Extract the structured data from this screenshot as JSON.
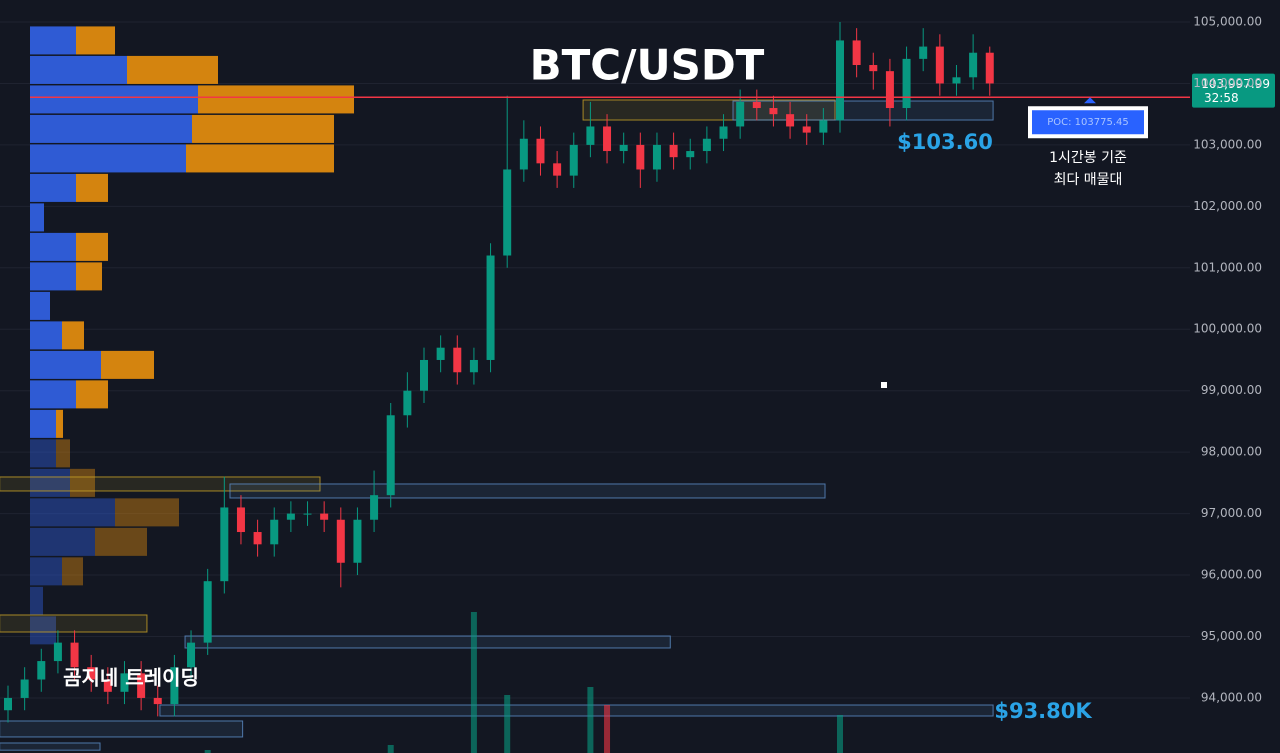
{
  "chart_data": {
    "type": "candlestick",
    "title": "BTC/USDT",
    "watermark": "곰지네 트레이딩",
    "ylim": [
      93104,
      105358
    ],
    "yticks": [
      {
        "value": 94000,
        "label": "94,000.00"
      },
      {
        "value": 95000,
        "label": "95,000.00"
      },
      {
        "value": 96000,
        "label": "96,000.00"
      },
      {
        "value": 97000,
        "label": "97,000.00"
      },
      {
        "value": 98000,
        "label": "98,000.00"
      },
      {
        "value": 99000,
        "label": "99,000.00"
      },
      {
        "value": 100000,
        "label": "100,000.00"
      },
      {
        "value": 101000,
        "label": "101,000.00"
      },
      {
        "value": 102000,
        "label": "102,000.00"
      },
      {
        "value": 103000,
        "label": "103,000.00"
      },
      {
        "value": 104000,
        "label": "104,000.00"
      },
      {
        "value": 105000,
        "label": "105,000.00"
      }
    ],
    "grid": true,
    "up_color": "#089981",
    "down_color": "#f23645",
    "open": [
      93800,
      94000,
      94300,
      94600,
      94900,
      94500,
      94300,
      94100,
      94400,
      94000,
      93900,
      94500,
      94900,
      95900,
      97100,
      96700,
      96500,
      96900,
      97000,
      97000,
      96900,
      96200,
      96900,
      97300,
      98600,
      99000,
      99500,
      99700,
      99300,
      99500,
      101200,
      102600,
      103100,
      102700,
      102500,
      103000,
      103300,
      102900,
      103000,
      102600,
      103000,
      102800,
      102900,
      103100,
      103300,
      103700,
      103600,
      103500,
      103300,
      103200,
      103400,
      104700,
      104300,
      104200,
      103600,
      104400,
      104600,
      104000,
      104100,
      104500
    ],
    "high": [
      94200,
      94500,
      94800,
      95100,
      95100,
      94700,
      94500,
      94600,
      94600,
      94200,
      94700,
      95100,
      96100,
      97600,
      97300,
      96900,
      97100,
      97200,
      97200,
      97200,
      97100,
      97100,
      97700,
      98800,
      99300,
      99700,
      99900,
      99900,
      99700,
      101400,
      103800,
      103400,
      103300,
      102900,
      103200,
      103700,
      103500,
      103200,
      103200,
      103200,
      103200,
      103100,
      103300,
      103500,
      103900,
      103900,
      103800,
      103700,
      103500,
      103600,
      105000,
      104900,
      104500,
      104400,
      104600,
      104900,
      104800,
      104300,
      104800,
      104600
    ],
    "low": [
      93600,
      93800,
      94100,
      94400,
      94300,
      94100,
      93900,
      93900,
      93800,
      93700,
      93700,
      94300,
      94700,
      95700,
      96500,
      96300,
      96300,
      96700,
      96800,
      96700,
      95800,
      96000,
      96700,
      97100,
      98400,
      98800,
      99300,
      99100,
      99100,
      99300,
      101000,
      102400,
      102500,
      102300,
      102300,
      102800,
      102700,
      102700,
      102300,
      102400,
      102600,
      102600,
      102700,
      102900,
      103100,
      103400,
      103300,
      103100,
      103000,
      103000,
      103200,
      104100,
      103900,
      103300,
      103400,
      104200,
      103800,
      103800,
      103900,
      103800
    ],
    "close": [
      94000,
      94300,
      94600,
      94900,
      94500,
      94300,
      94100,
      94400,
      94000,
      93900,
      94500,
      94900,
      95900,
      97100,
      96700,
      96500,
      96900,
      97000,
      97000,
      96900,
      96200,
      96900,
      97300,
      98600,
      99000,
      99500,
      99700,
      99300,
      99500,
      101200,
      102600,
      103100,
      102700,
      102500,
      103000,
      103300,
      102900,
      103000,
      102600,
      103000,
      102800,
      102900,
      103100,
      103300,
      103700,
      103600,
      103500,
      103300,
      103200,
      103400,
      104700,
      104300,
      104200,
      103600,
      104400,
      104600,
      104000,
      104100,
      104500,
      104000
    ],
    "volume": [
      0,
      0,
      0,
      0,
      0,
      0,
      0,
      0,
      0,
      0,
      0,
      0,
      3,
      0,
      0,
      0,
      0,
      0,
      0,
      0,
      0,
      0,
      0,
      8,
      0,
      0,
      0,
      0,
      141,
      0,
      58,
      0,
      0,
      0,
      0,
      66,
      48,
      0,
      0,
      0,
      0,
      0,
      0,
      0,
      0,
      0,
      0,
      0,
      0,
      0,
      38,
      0,
      0,
      0,
      0,
      0,
      0,
      0,
      0,
      0
    ],
    "volume_profile": {
      "levels": [
        104700,
        104220,
        103740,
        103260,
        102780,
        102300,
        101820,
        101340,
        100860,
        100380,
        99900,
        99420,
        98940,
        98460,
        97980,
        97500,
        97020,
        96540,
        96060,
        95580,
        95100
      ],
      "buy": [
        46,
        97,
        168,
        162,
        156,
        46,
        14,
        46,
        46,
        20,
        32,
        71,
        46,
        26,
        26,
        40,
        85,
        65,
        32,
        13,
        26
      ],
      "sell": [
        39,
        91,
        156,
        142,
        148,
        32,
        0,
        32,
        26,
        0,
        22,
        53,
        32,
        7,
        14,
        25,
        64,
        52,
        21,
        0,
        0
      ],
      "buy_color": "#2f5bd4",
      "sell_color": "#d4840f"
    },
    "poc": {
      "value": 103775.45,
      "label": "POC: 103775.45",
      "color": "#f23645"
    },
    "current_price": {
      "value": 103997.99,
      "label": "103,997.99",
      "countdown": "32:58",
      "color": "#089981"
    },
    "zones": [
      {
        "low": 97368,
        "high": 97596,
        "start": -0.5,
        "end": 18.75,
        "color": "#c9a227"
      },
      {
        "low": 97254,
        "high": 97482,
        "start": 13.34,
        "end": 49.1,
        "color": "#5d8fc9"
      },
      {
        "low": 95073,
        "high": 95350,
        "start": -0.5,
        "end": 8.35,
        "color": "#c9a227"
      },
      {
        "low": 94813,
        "high": 95008,
        "start": 10.64,
        "end": 39.8,
        "color": "#5d8fc9"
      },
      {
        "low": 93706,
        "high": 93885,
        "start": 9.13,
        "end": 59.2,
        "color": "#5d8fc9"
      },
      {
        "low": 93365,
        "high": 93625,
        "start": -0.5,
        "end": 14.1,
        "color": "#5d8fc9"
      },
      {
        "low": 93150,
        "high": 93267,
        "start": -0.5,
        "end": 5.53,
        "color": "#5d8fc9"
      },
      {
        "low": 103405,
        "high": 103731,
        "start": 34.56,
        "end": 49.7,
        "color": "#c9a227"
      },
      {
        "low": 103405,
        "high": 103714,
        "start": 43.57,
        "end": 59.2,
        "color": "#5d8fc9"
      }
    ],
    "annotations": [
      {
        "text": "$103.60"
      },
      {
        "text": "$93.80K"
      },
      {
        "text": "1시간봉 기준"
      },
      {
        "text": "최다 매물대"
      }
    ]
  }
}
